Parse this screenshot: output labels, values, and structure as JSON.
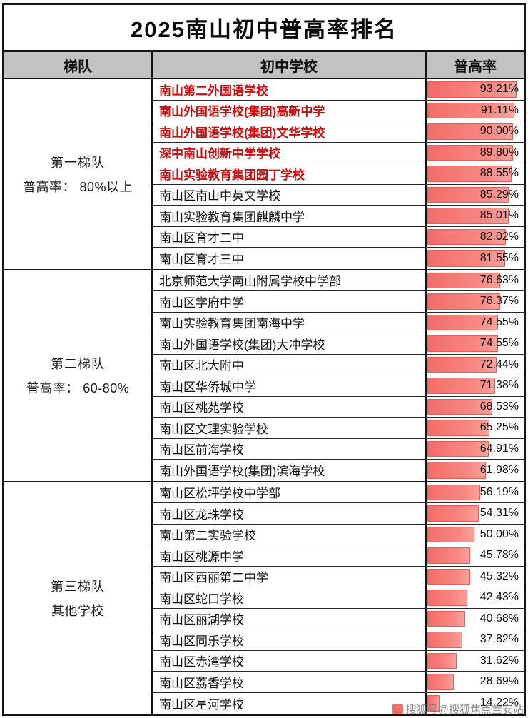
{
  "title": "2025南山初中普高率排名",
  "columns": {
    "tier": "梯队",
    "school": "初中学校",
    "rate": "普高率"
  },
  "tiers": [
    {
      "name": "第一梯队",
      "desc": "普高率： 80%以上",
      "rows": [
        {
          "school": "南山第二外国语学校",
          "rate": "93.21%",
          "red": true
        },
        {
          "school": "南山外国语学校(集团)高新中学",
          "rate": "91.11%",
          "red": true
        },
        {
          "school": "南山外国语学校(集团)文华学校",
          "rate": "90.00%",
          "red": true
        },
        {
          "school": "深中南山创新中学学校",
          "rate": "89.80%",
          "red": true
        },
        {
          "school": "南山实验教育集团园丁学校",
          "rate": "88.55%",
          "red": true
        },
        {
          "school": "南山区南山中英文学校",
          "rate": "85.29%",
          "red": false
        },
        {
          "school": "南山实验教育集团麒麟中学",
          "rate": "85.01%",
          "red": false
        },
        {
          "school": "南山区育才二中",
          "rate": "82.02%",
          "red": false
        },
        {
          "school": "南山区育才三中",
          "rate": "81.55%",
          "red": false
        }
      ]
    },
    {
      "name": "第二梯队",
      "desc": "普高率： 60-80%",
      "rows": [
        {
          "school": "北京师范大学南山附属学校中学部",
          "rate": "76.63%",
          "red": false
        },
        {
          "school": "南山区学府中学",
          "rate": "76.37%",
          "red": false
        },
        {
          "school": "南山实验教育集团南海中学",
          "rate": "74.55%",
          "red": false
        },
        {
          "school": "南山外国语学校(集团)大冲学校",
          "rate": "74.55%",
          "red": false
        },
        {
          "school": "南山区北大附中",
          "rate": "72.44%",
          "red": false
        },
        {
          "school": "南山区华侨城中学",
          "rate": "71.38%",
          "red": false
        },
        {
          "school": "南山区桃苑学校",
          "rate": "68.53%",
          "red": false
        },
        {
          "school": "南山区文理实验学校",
          "rate": "65.25%",
          "red": false
        },
        {
          "school": "南山区前海学校",
          "rate": "64.91%",
          "red": false
        },
        {
          "school": "南山外国语学校(集团)滨海学校",
          "rate": "61.98%",
          "red": false
        }
      ]
    },
    {
      "name": "第三梯队",
      "desc": "其他学校",
      "rows": [
        {
          "school": "南山区松坪学校中学部",
          "rate": "56.19%",
          "red": false
        },
        {
          "school": "南山区龙珠学校",
          "rate": "54.31%",
          "red": false
        },
        {
          "school": "南山第二实验学校",
          "rate": "50.00%",
          "red": false
        },
        {
          "school": "南山区桃源中学",
          "rate": "45.78%",
          "red": false
        },
        {
          "school": "南山区西丽第二中学",
          "rate": "45.32%",
          "red": false
        },
        {
          "school": "南山区蛇口学校",
          "rate": "42.43%",
          "red": false
        },
        {
          "school": "南山区丽湖学校",
          "rate": "40.68%",
          "red": false
        },
        {
          "school": "南山区同乐学校",
          "rate": "37.82%",
          "red": false
        },
        {
          "school": "南山区赤湾学校",
          "rate": "31.62%",
          "red": false
        },
        {
          "school": "南山区荔香学校",
          "rate": "28.69%",
          "red": false
        },
        {
          "school": "南山区星河学校",
          "rate": "14.22%",
          "red": false
        }
      ]
    }
  ],
  "watermark": {
    "text": "搜狐号@搜狐焦点宝安站"
  },
  "colors": {
    "bar_main": "#f26d68",
    "bar_light": "#fba29d",
    "highlight_red": "#d40a0a",
    "header_bg": "#c3c2c2",
    "border": "#141414"
  },
  "chart_data": {
    "type": "bar",
    "orientation": "horizontal",
    "title": "2025南山初中普高率排名",
    "xlabel": "普高率",
    "ylabel": "初中学校",
    "xlim": [
      0,
      100
    ],
    "unit": "%",
    "legend": "none",
    "grid": false,
    "categories": [
      "南山第二外国语学校",
      "南山外国语学校(集团)高新中学",
      "南山外国语学校(集团)文华学校",
      "深中南山创新中学学校",
      "南山实验教育集团园丁学校",
      "南山区南山中英文学校",
      "南山实验教育集团麒麟中学",
      "南山区育才二中",
      "南山区育才三中",
      "北京师范大学南山附属学校中学部",
      "南山区学府中学",
      "南山实验教育集团南海中学",
      "南山外国语学校(集团)大冲学校",
      "南山区北大附中",
      "南山区华侨城中学",
      "南山区桃苑学校",
      "南山区文理实验学校",
      "南山区前海学校",
      "南山外国语学校(集团)滨海学校",
      "南山区松坪学校中学部",
      "南山区龙珠学校",
      "南山第二实验学校",
      "南山区桃源中学",
      "南山区西丽第二中学",
      "南山区蛇口学校",
      "南山区丽湖学校",
      "南山区同乐学校",
      "南山区赤湾学校",
      "南山区荔香学校",
      "南山区星河学校"
    ],
    "values": [
      93.21,
      91.11,
      90.0,
      89.8,
      88.55,
      85.29,
      85.01,
      82.02,
      81.55,
      76.63,
      76.37,
      74.55,
      74.55,
      72.44,
      71.38,
      68.53,
      65.25,
      64.91,
      61.98,
      56.19,
      54.31,
      50.0,
      45.78,
      45.32,
      42.43,
      40.68,
      37.82,
      31.62,
      28.69,
      14.22
    ],
    "groups": [
      {
        "name": "第一梯队",
        "criteria": "普高率： 80%以上",
        "count": 9
      },
      {
        "name": "第二梯队",
        "criteria": "普高率： 60-80%",
        "count": 10
      },
      {
        "name": "第三梯队",
        "criteria": "其他学校",
        "count": 11
      }
    ]
  }
}
